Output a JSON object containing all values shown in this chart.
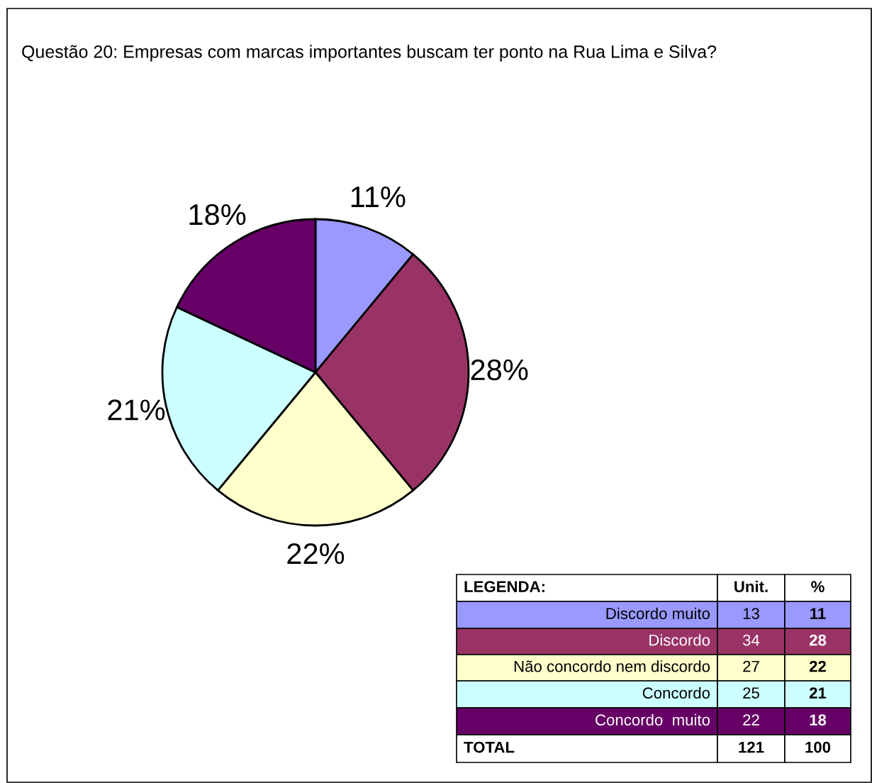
{
  "chart_data": {
    "type": "pie",
    "title": "Questão 20: Empresas com marcas importantes buscam ter ponto na Rua Lima e Silva?",
    "categories": [
      "Discordo muito",
      "Discordo",
      "Não concordo nem discordo",
      "Concordo",
      "Concordo  muito"
    ],
    "values": [
      11,
      28,
      22,
      21,
      18
    ],
    "colors": [
      "#9999ff",
      "#993366",
      "#ffffcc",
      "#ccffff",
      "#660066"
    ],
    "value_labels": [
      "11%",
      "28%",
      "22%",
      "21%",
      "18%"
    ],
    "legend": "bottom right",
    "annotations": [
      "LEGENDA:",
      "Unit.",
      "%",
      "TOTAL",
      "121",
      "100",
      "13",
      "34",
      "27",
      "25",
      "22",
      "11",
      "28",
      "22",
      "21",
      "18"
    ]
  }
}
